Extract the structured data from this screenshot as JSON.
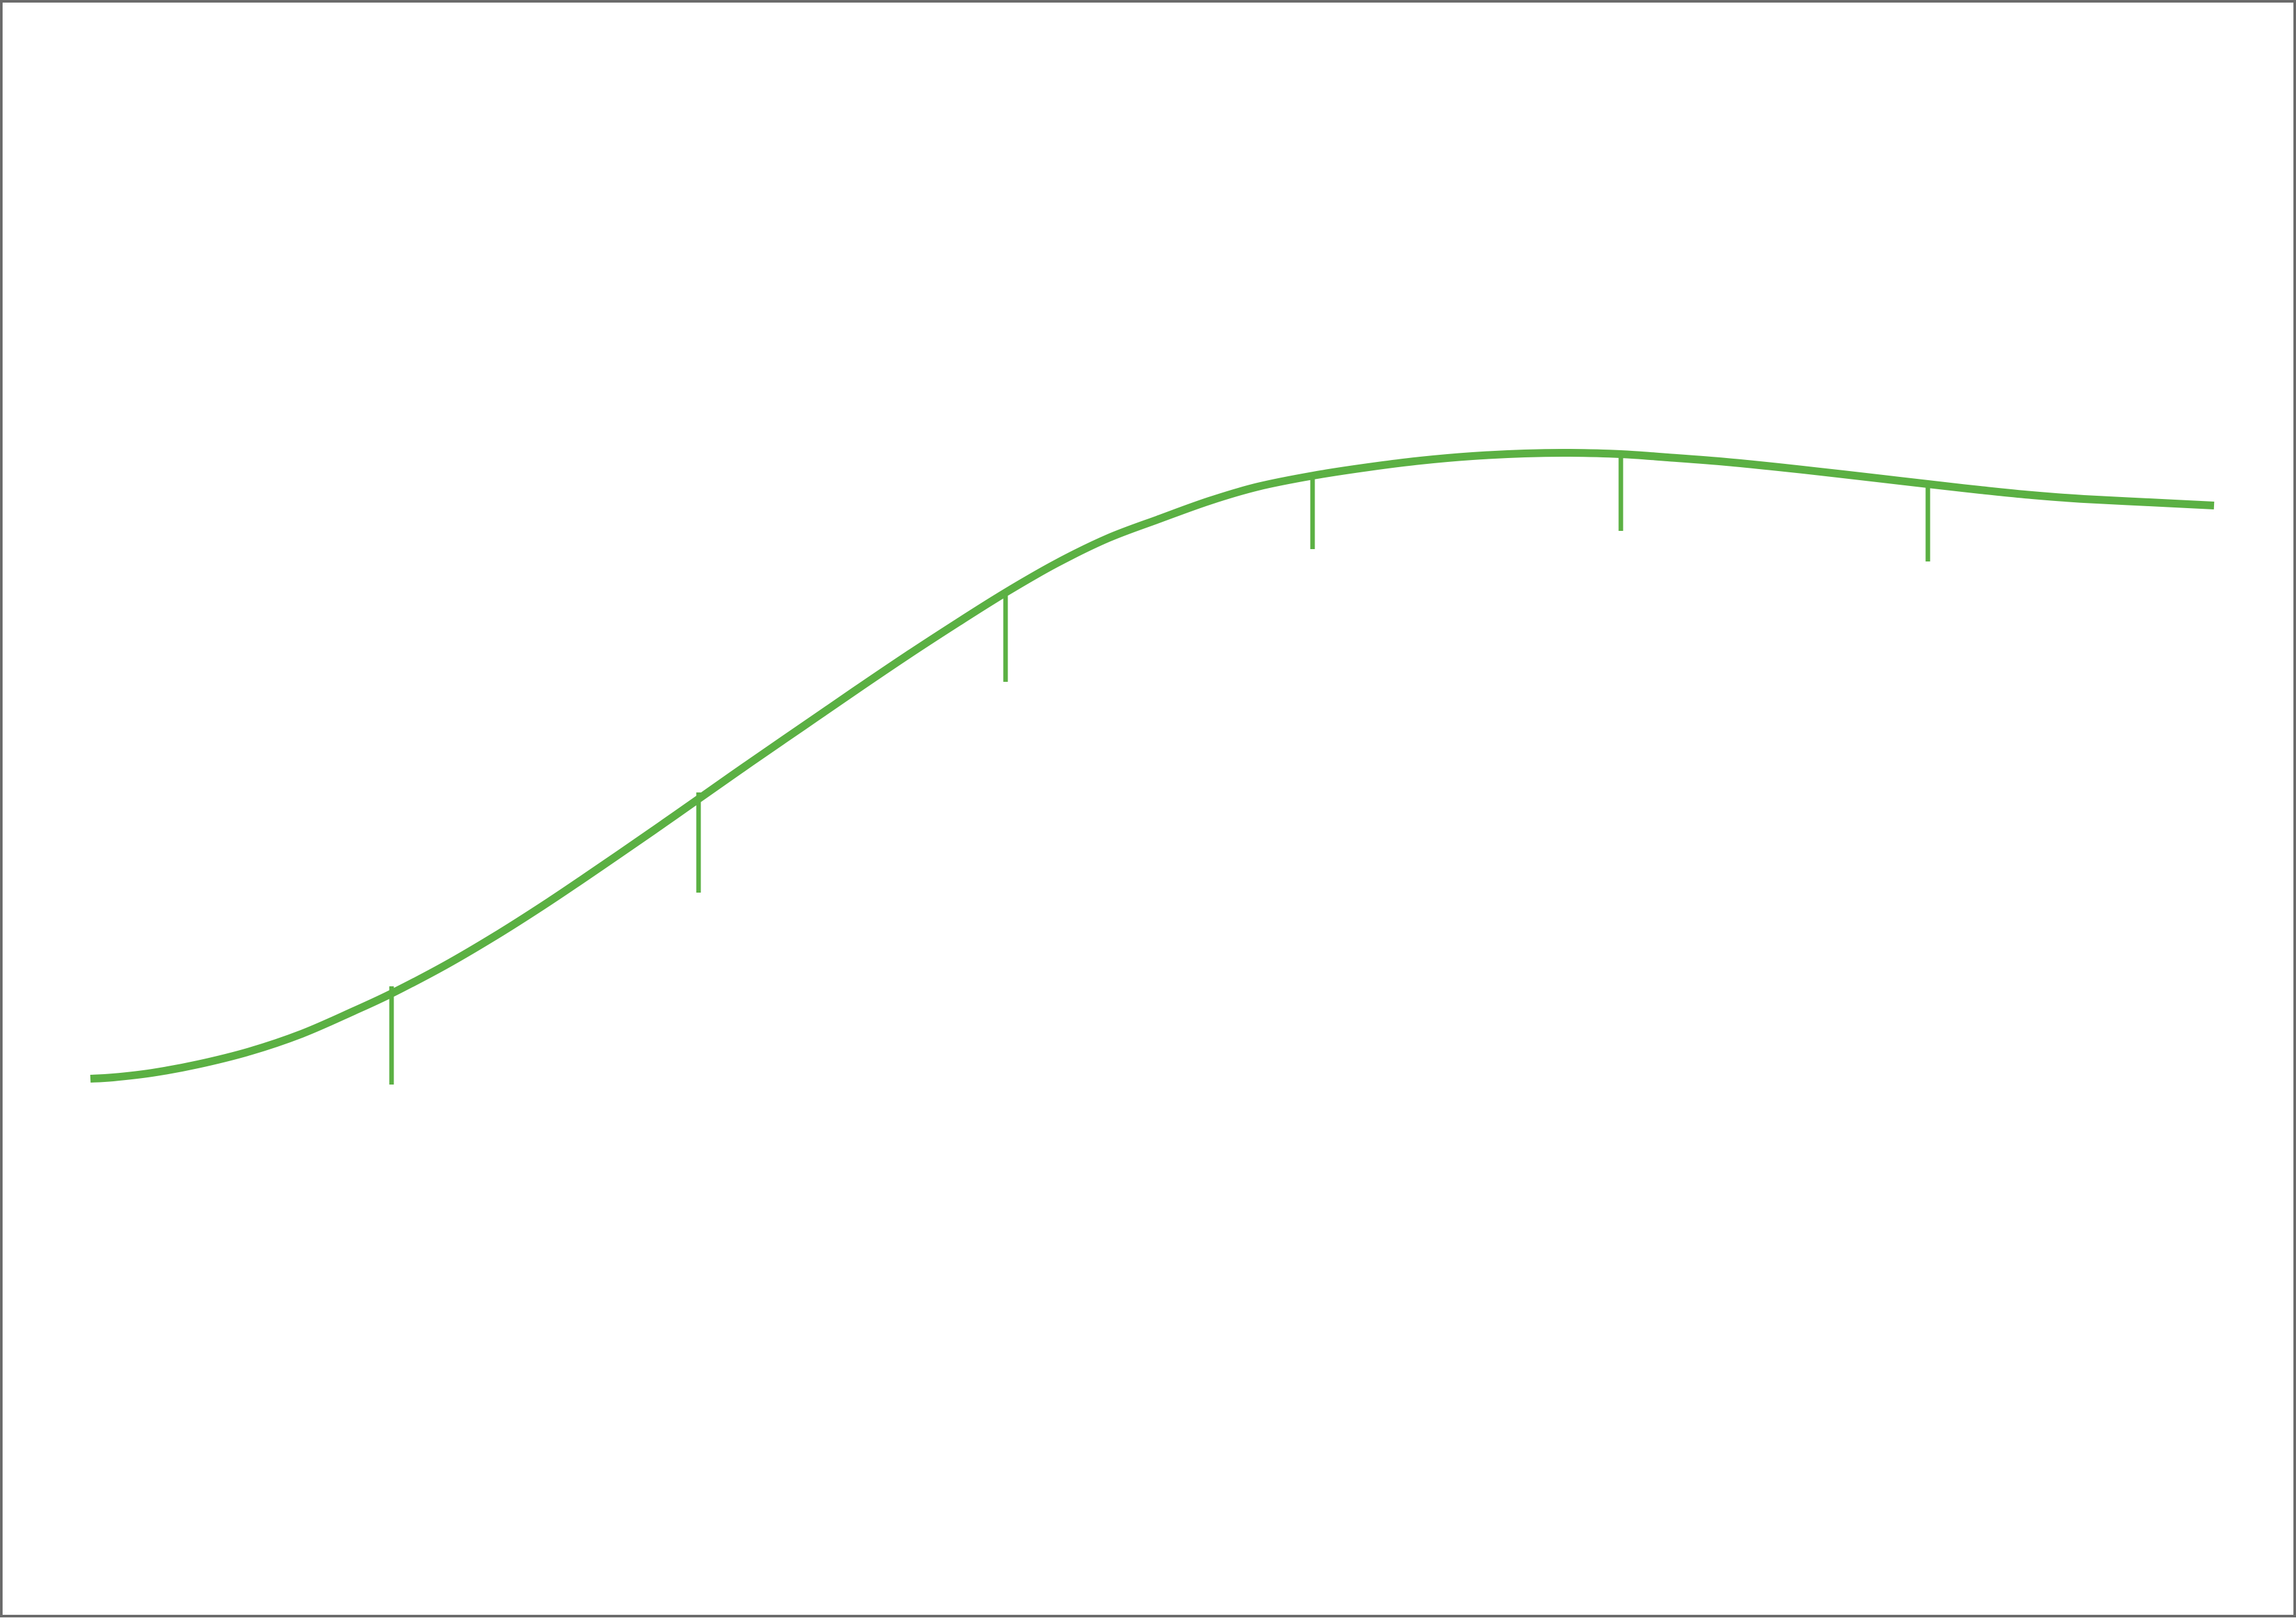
{
  "diagram": {
    "type": "curve-with-drop-lines",
    "accent_color": "#5bb043",
    "frame_color": "#6b6b6b",
    "curve": {
      "shape": "rising S-curve that levels off and dips slightly toward the right",
      "line_color": "#5bb043"
    },
    "drop_lines": {
      "count": 6,
      "line_color": "#5bb043"
    }
  }
}
